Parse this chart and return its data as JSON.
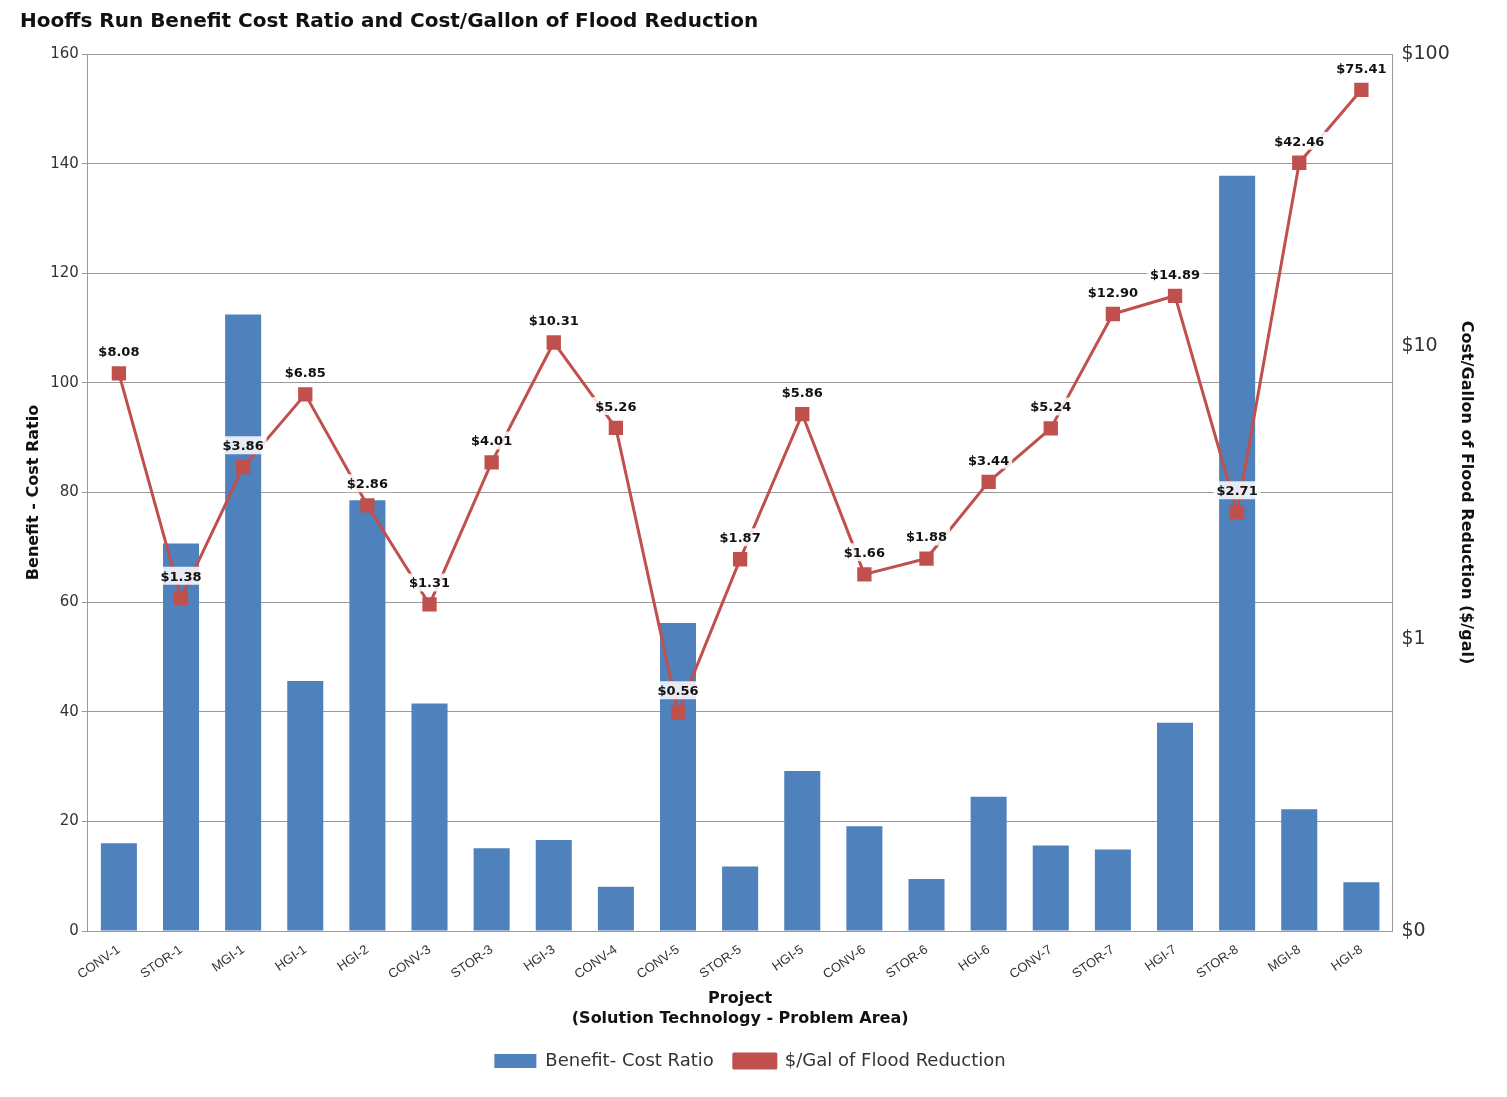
{
  "chart_data": {
    "type": "bar",
    "title": "Hooffs Run Benefit Cost Ratio and Cost/Gallon of Flood Reduction",
    "xlabel": "Project\n(Solution Technology - Problem Area)",
    "ylabel": "Benefit - Cost Ratio",
    "y2label": "Cost/Gallon of Flood Reduction ($/gal)",
    "categories": [
      "CONV-1",
      "STOR-1",
      "MGI-1",
      "HGI-1",
      "HGI-2",
      "CONV-3",
      "STOR-3",
      "HGI-3",
      "CONV-4",
      "CONV-5",
      "STOR-5",
      "HGI-5",
      "CONV-6",
      "STOR-6",
      "HGI-6",
      "CONV-7",
      "STOR-7",
      "HGI-7",
      "STOR-8",
      "MGI-8",
      "HGI-8"
    ],
    "series": [
      {
        "name": "Benefit- Cost Ratio",
        "color": "#4f81bd",
        "values": [
          16.0,
          70.7,
          112.5,
          45.6,
          78.6,
          41.5,
          15.1,
          16.6,
          8.1,
          56.2,
          11.8,
          29.2,
          19.1,
          9.5,
          24.5,
          15.6,
          14.9,
          38.0,
          137.8,
          22.2,
          8.9
        ]
      },
      {
        "name": "$/Gal of Flood Reduction",
        "type": "line",
        "axis": "y2",
        "color": "#c0504d",
        "marker": "square",
        "values": [
          8.08,
          1.38,
          3.86,
          6.85,
          2.86,
          1.31,
          4.01,
          10.31,
          5.26,
          0.56,
          1.87,
          5.86,
          1.66,
          1.88,
          3.44,
          5.24,
          12.9,
          14.89,
          2.71,
          42.46,
          75.41
        ],
        "value_labels": [
          "$8.08",
          "$1.38",
          "$3.86",
          "$6.85",
          "$2.86",
          "$1.31",
          "$4.01",
          "$10.31",
          "$5.26",
          "$0.56",
          "$1.87",
          "$5.86",
          "$1.66",
          "$1.88",
          "$3.44",
          "$5.24",
          "$12.90",
          "$14.89",
          "$2.71",
          "$42.46",
          "$75.41"
        ]
      }
    ],
    "ylim": [
      0,
      160
    ],
    "yticks": [
      0,
      20,
      40,
      60,
      80,
      100,
      120,
      140,
      160
    ],
    "y2lim": [
      0.1,
      100
    ],
    "y2ticks": [
      {
        "value": 0.1,
        "label": "$0"
      },
      {
        "value": 1,
        "label": "$1"
      },
      {
        "value": 10,
        "label": "$10"
      },
      {
        "value": 100,
        "label": "$100"
      }
    ],
    "log": "y2",
    "grid": "y",
    "legend": "bottom"
  }
}
